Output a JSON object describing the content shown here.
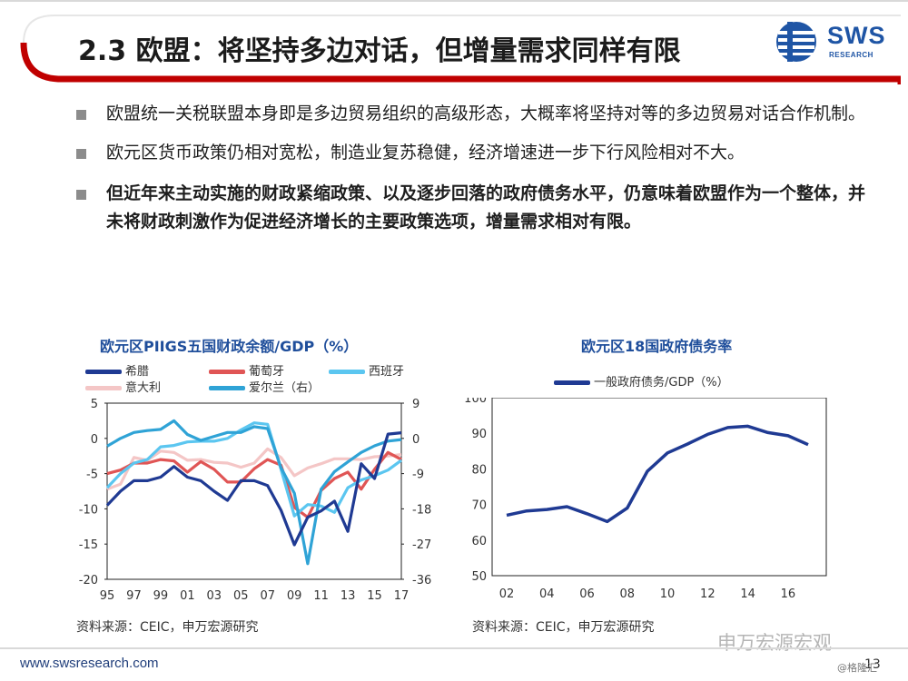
{
  "slide": {
    "title": "2.3 欧盟：将坚持多边对话，但增量需求同样有限",
    "logo_text": "SWS",
    "logo_sub": "RESEARCH",
    "page_number": "13",
    "footer_url": "www.swsresearch.com",
    "watermark": "申万宏源宏观",
    "watermark_small": "@格隆汇",
    "accent_color": "#c00000",
    "brand_color": "#1f55a5"
  },
  "bullets": [
    {
      "text": "欧盟统一关税联盟本身即是多边贸易组织的高级形态，大概率将坚持对等的多边贸易对话合作机制。",
      "bold": false
    },
    {
      "text": "欧元区货币政策仍相对宽松，制造业复苏稳健，经济增速进一步下行风险相对不大。",
      "bold": false
    },
    {
      "text": "但近年来主动实施的财政紧缩政策、以及逐步回落的政府债务水平，仍意味着欧盟作为一个整体，并未将财政刺激作为促进经济增长的主要政策选项，增量需求相对有限。",
      "bold": true
    }
  ],
  "chart_data": [
    {
      "type": "line",
      "title": "欧元区PIIGS五国财政余额/GDP（%）",
      "source": "资料来源：CEIC，申万宏源研究",
      "x": [
        1995,
        1996,
        1997,
        1998,
        1999,
        2000,
        2001,
        2002,
        2003,
        2004,
        2005,
        2006,
        2007,
        2008,
        2009,
        2010,
        2011,
        2012,
        2013,
        2014,
        2015,
        2016,
        2017
      ],
      "x_tick_labels": [
        "95",
        "97",
        "99",
        "01",
        "03",
        "05",
        "07",
        "09",
        "11",
        "13",
        "15",
        "17"
      ],
      "ylim_left": [
        -20,
        5
      ],
      "y_ticks_left": [
        5,
        0,
        -5,
        -10,
        -15,
        -20
      ],
      "ylim_right": [
        -36,
        9
      ],
      "y_ticks_right": [
        9,
        0,
        -9,
        -18,
        -27,
        -36
      ],
      "series": [
        {
          "name": "希腊",
          "color": "#1f3a93",
          "axis": "left",
          "values": [
            -9.5,
            -7.5,
            -6,
            -6,
            -5.5,
            -4,
            -5.5,
            -6,
            -7.5,
            -8.8,
            -6,
            -6,
            -6.7,
            -10.2,
            -15.1,
            -11.2,
            -10.3,
            -8.9,
            -13.2,
            -3.6,
            -5.7,
            0.6,
            0.8
          ]
        },
        {
          "name": "葡萄牙",
          "color": "#e05555",
          "axis": "left",
          "values": [
            -5,
            -4.5,
            -3.5,
            -3.5,
            -3,
            -3.2,
            -4.8,
            -3.3,
            -4.4,
            -6.2,
            -6.2,
            -4.3,
            -3,
            -3.8,
            -9.8,
            -11.2,
            -7.4,
            -5.7,
            -4.8,
            -7.2,
            -4.4,
            -2,
            -3
          ]
        },
        {
          "name": "西班牙",
          "color": "#5bc6f0",
          "axis": "left",
          "values": [
            -7,
            -5,
            -3.5,
            -3,
            -1.2,
            -1,
            -0.5,
            -0.4,
            -0.4,
            0,
            1.2,
            2.2,
            2,
            -4.4,
            -11,
            -9.4,
            -9.6,
            -10.5,
            -7,
            -5.9,
            -5.3,
            -4.5,
            -3.1
          ]
        },
        {
          "name": "意大利",
          "color": "#f4c6c6",
          "axis": "left",
          "values": [
            -7.2,
            -6.5,
            -2.7,
            -3.1,
            -1.8,
            -2,
            -3.1,
            -3,
            -3.4,
            -3.5,
            -4.1,
            -3.5,
            -1.5,
            -2.7,
            -5.3,
            -4.2,
            -3.6,
            -2.9,
            -2.9,
            -3,
            -2.6,
            -2.5,
            -2.3
          ]
        },
        {
          "name": "爱尔兰（右）",
          "color": "#2fa3d6",
          "axis": "right",
          "values": [
            -2,
            0,
            1.5,
            2,
            2.3,
            4.5,
            1,
            -0.5,
            0.5,
            1.5,
            1.5,
            3,
            2.5,
            -7.5,
            -14,
            -32,
            -13,
            -8.5,
            -6,
            -3.6,
            -1.9,
            -0.7,
            -0.3
          ]
        }
      ]
    },
    {
      "type": "line",
      "title": "欧元区18国政府债务率",
      "source": "资料来源：CEIC，申万宏源研究",
      "x": [
        2002,
        2003,
        2004,
        2005,
        2006,
        2007,
        2008,
        2009,
        2010,
        2011,
        2012,
        2013,
        2014,
        2015,
        2016,
        2017
      ],
      "x_tick_labels": [
        "02",
        "04",
        "06",
        "08",
        "10",
        "12",
        "14",
        "16"
      ],
      "ylim": [
        50,
        100
      ],
      "y_ticks": [
        100,
        90,
        80,
        70,
        60,
        50
      ],
      "series": [
        {
          "name": "一般政府债务/GDP（%）",
          "color": "#1f3a93",
          "values": [
            67,
            68.2,
            68.6,
            69.4,
            67.4,
            65.2,
            69,
            79.3,
            84.5,
            87,
            89.7,
            91.6,
            92,
            90.2,
            89.3,
            86.8
          ]
        }
      ]
    }
  ]
}
